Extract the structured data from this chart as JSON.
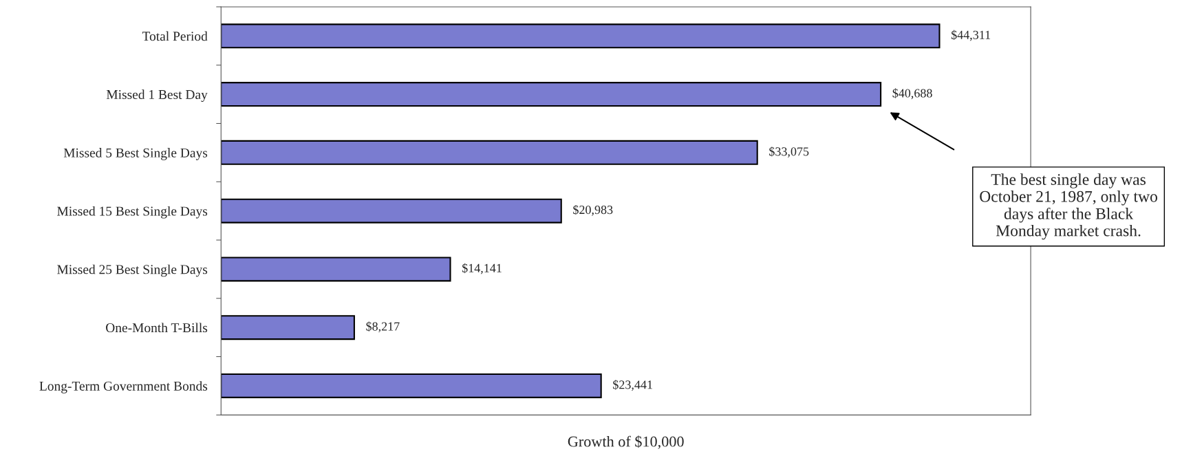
{
  "chart_data": {
    "type": "bar",
    "orientation": "horizontal",
    "categories": [
      "Total Period",
      "Missed 1 Best Day",
      "Missed 5 Best Single Days",
      "Missed 15 Best Single Days",
      "Missed 25 Best Single Days",
      "One-Month T-Bills",
      "Long-Term Government Bonds"
    ],
    "values": [
      44311,
      40688,
      33075,
      20983,
      14141,
      8217,
      23441
    ],
    "value_labels": [
      "$44,311",
      "$40,688",
      "$33,075",
      "$20,983",
      "$14,141",
      "$8,217",
      "$23,441"
    ],
    "color": "#7a7cd0",
    "xlabel": "Growth of $10,000",
    "annotations": [
      "The best single day was\nOctober 21, 1987, only two\ndays after the Black\nMonday market crash."
    ],
    "tick_labels": "y",
    "grid": false,
    "legend": false
  }
}
